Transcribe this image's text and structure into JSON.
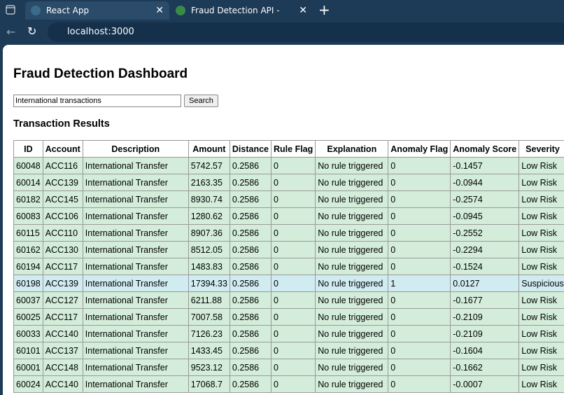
{
  "browser": {
    "tabs": [
      "React App",
      "Fraud Detection API - Swagger UI"
    ],
    "address": "localhost:3000"
  },
  "page": {
    "title": "Fraud Detection Dashboard",
    "search_value": "International transactions",
    "search_button": "Search",
    "section_title": "Transaction Results",
    "severity_colors": {
      "Low Risk": "#d4edda",
      "Suspicious": "#d1ecf1"
    },
    "table": {
      "headers": [
        "ID",
        "Account",
        "Description",
        "Amount",
        "Distance",
        "Rule Flag",
        "Explanation",
        "Anomaly Flag",
        "Anomaly Score",
        "Severity"
      ],
      "rows": [
        [
          "60048",
          "ACC116",
          "International Transfer",
          "5742.57",
          "0.2586",
          "0",
          "No rule triggered",
          "0",
          "-0.1457",
          "Low Risk"
        ],
        [
          "60014",
          "ACC139",
          "International Transfer",
          "2163.35",
          "0.2586",
          "0",
          "No rule triggered",
          "0",
          "-0.0944",
          "Low Risk"
        ],
        [
          "60182",
          "ACC145",
          "International Transfer",
          "8930.74",
          "0.2586",
          "0",
          "No rule triggered",
          "0",
          "-0.2574",
          "Low Risk"
        ],
        [
          "60083",
          "ACC106",
          "International Transfer",
          "1280.62",
          "0.2586",
          "0",
          "No rule triggered",
          "0",
          "-0.0945",
          "Low Risk"
        ],
        [
          "60115",
          "ACC110",
          "International Transfer",
          "8907.36",
          "0.2586",
          "0",
          "No rule triggered",
          "0",
          "-0.2552",
          "Low Risk"
        ],
        [
          "60162",
          "ACC130",
          "International Transfer",
          "8512.05",
          "0.2586",
          "0",
          "No rule triggered",
          "0",
          "-0.2294",
          "Low Risk"
        ],
        [
          "60194",
          "ACC117",
          "International Transfer",
          "1483.83",
          "0.2586",
          "0",
          "No rule triggered",
          "0",
          "-0.1524",
          "Low Risk"
        ],
        [
          "60198",
          "ACC139",
          "International Transfer",
          "17394.33",
          "0.2586",
          "0",
          "No rule triggered",
          "1",
          "0.0127",
          "Suspicious"
        ],
        [
          "60037",
          "ACC127",
          "International Transfer",
          "6211.88",
          "0.2586",
          "0",
          "No rule triggered",
          "0",
          "-0.1677",
          "Low Risk"
        ],
        [
          "60025",
          "ACC117",
          "International Transfer",
          "7007.58",
          "0.2586",
          "0",
          "No rule triggered",
          "0",
          "-0.2109",
          "Low Risk"
        ],
        [
          "60033",
          "ACC140",
          "International Transfer",
          "7126.23",
          "0.2586",
          "0",
          "No rule triggered",
          "0",
          "-0.2109",
          "Low Risk"
        ],
        [
          "60101",
          "ACC137",
          "International Transfer",
          "1433.45",
          "0.2586",
          "0",
          "No rule triggered",
          "0",
          "-0.1604",
          "Low Risk"
        ],
        [
          "60001",
          "ACC148",
          "International Transfer",
          "9523.12",
          "0.2586",
          "0",
          "No rule triggered",
          "0",
          "-0.1662",
          "Low Risk"
        ],
        [
          "60024",
          "ACC140",
          "International Transfer",
          "17068.7",
          "0.2586",
          "0",
          "No rule triggered",
          "0",
          "-0.0007",
          "Low Risk"
        ]
      ]
    }
  }
}
